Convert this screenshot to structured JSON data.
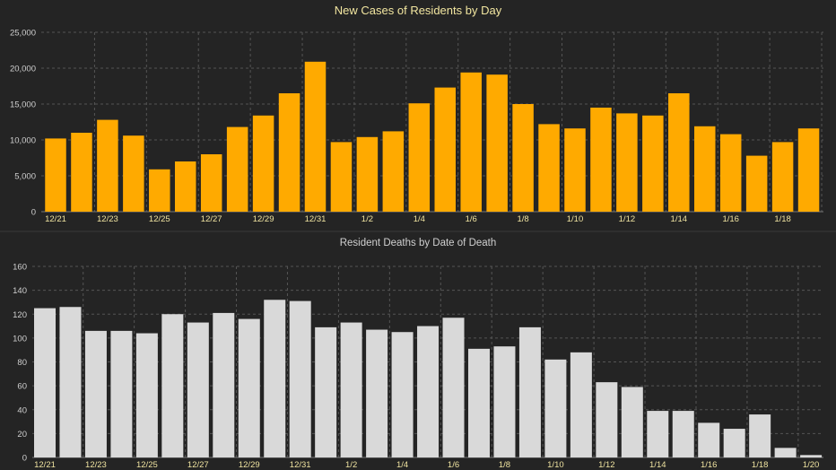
{
  "colors": {
    "background": "#242424",
    "cases_bar": "#FFAA00",
    "deaths_bar": "#D9D9D9",
    "title_cases": "#F2E6A0",
    "title_deaths": "#D0D0D0",
    "tick_label_cases": "#EFE3A0",
    "tick_label_deaths": "#EFE3A0",
    "axis_label": "#CFCFCF",
    "grid": "#555555"
  },
  "chart_data": [
    {
      "type": "bar",
      "title": "New Cases of Residents by Day",
      "xlabel": "",
      "ylabel": "",
      "ylim": [
        0,
        25000
      ],
      "yticks": [
        "0",
        "5,000",
        "10,000",
        "15,000",
        "20,000",
        "25,000"
      ],
      "grid": true,
      "categories": [
        "12/21",
        "12/22",
        "12/23",
        "12/24",
        "12/25",
        "12/26",
        "12/27",
        "12/28",
        "12/29",
        "12/30",
        "12/31",
        "1/1",
        "1/2",
        "1/3",
        "1/4",
        "1/5",
        "1/6",
        "1/7",
        "1/8",
        "1/9",
        "1/10",
        "1/11",
        "1/12",
        "1/13",
        "1/14",
        "1/15",
        "1/16",
        "1/17",
        "1/18",
        "1/19"
      ],
      "tick_labels": [
        {
          "index": 0,
          "text": "12/21"
        },
        {
          "index": 2,
          "text": "12/23"
        },
        {
          "index": 4,
          "text": "12/25"
        },
        {
          "index": 6,
          "text": "12/27"
        },
        {
          "index": 8,
          "text": "12/29"
        },
        {
          "index": 10,
          "text": "12/31"
        },
        {
          "index": 12,
          "text": "1/2"
        },
        {
          "index": 14,
          "text": "1/4"
        },
        {
          "index": 16,
          "text": "1/6"
        },
        {
          "index": 18,
          "text": "1/8"
        },
        {
          "index": 20,
          "text": "1/10"
        },
        {
          "index": 22,
          "text": "1/12"
        },
        {
          "index": 24,
          "text": "1/14"
        },
        {
          "index": 26,
          "text": "1/16"
        },
        {
          "index": 28,
          "text": "1/18"
        }
      ],
      "values": [
        10200,
        11000,
        12800,
        10600,
        5900,
        7000,
        8000,
        11800,
        13400,
        16500,
        20900,
        9700,
        10400,
        11200,
        15100,
        17300,
        19400,
        19100,
        15000,
        12200,
        11600,
        14500,
        13700,
        13400,
        16500,
        11900,
        10800,
        7800,
        9700,
        11600
      ]
    },
    {
      "type": "bar",
      "title": "Resident Deaths by Date of Death",
      "xlabel": "",
      "ylabel": "",
      "ylim": [
        0,
        160
      ],
      "yticks": [
        "0",
        "20",
        "40",
        "60",
        "80",
        "100",
        "120",
        "140",
        "160"
      ],
      "grid": true,
      "categories": [
        "12/21",
        "12/22",
        "12/23",
        "12/24",
        "12/25",
        "12/26",
        "12/27",
        "12/28",
        "12/29",
        "12/30",
        "12/31",
        "1/1",
        "1/2",
        "1/3",
        "1/4",
        "1/5",
        "1/6",
        "1/7",
        "1/8",
        "1/9",
        "1/10",
        "1/11",
        "1/12",
        "1/13",
        "1/14",
        "1/15",
        "1/16",
        "1/17",
        "1/18",
        "1/19",
        "1/20"
      ],
      "tick_labels": [
        {
          "index": 0,
          "text": "12/21"
        },
        {
          "index": 2,
          "text": "12/23"
        },
        {
          "index": 4,
          "text": "12/25"
        },
        {
          "index": 6,
          "text": "12/27"
        },
        {
          "index": 8,
          "text": "12/29"
        },
        {
          "index": 10,
          "text": "12/31"
        },
        {
          "index": 12,
          "text": "1/2"
        },
        {
          "index": 14,
          "text": "1/4"
        },
        {
          "index": 16,
          "text": "1/6"
        },
        {
          "index": 18,
          "text": "1/8"
        },
        {
          "index": 20,
          "text": "1/10"
        },
        {
          "index": 22,
          "text": "1/12"
        },
        {
          "index": 24,
          "text": "1/14"
        },
        {
          "index": 26,
          "text": "1/16"
        },
        {
          "index": 28,
          "text": "1/18"
        },
        {
          "index": 30,
          "text": "1/20"
        }
      ],
      "values": [
        125,
        126,
        106,
        106,
        104,
        120,
        113,
        121,
        116,
        132,
        131,
        109,
        113,
        107,
        105,
        110,
        117,
        91,
        93,
        109,
        82,
        88,
        63,
        59,
        39,
        39,
        29,
        24,
        36,
        8,
        2
      ]
    }
  ]
}
